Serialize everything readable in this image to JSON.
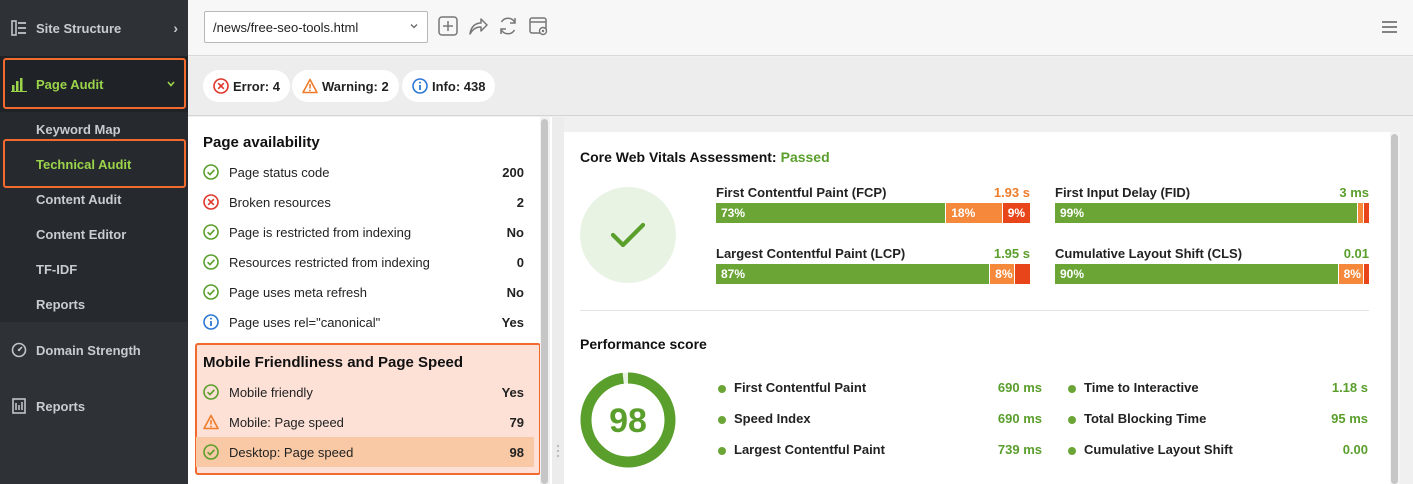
{
  "sidebar": {
    "site_structure": "Site Structure",
    "page_audit": "Page Audit",
    "sub_items": [
      "Keyword Map",
      "Technical Audit",
      "Content Audit",
      "Content Editor",
      "TF-IDF",
      "Reports"
    ],
    "domain_strength": "Domain Strength",
    "reports": "Reports"
  },
  "toolbar": {
    "url_value": "/news/free-seo-tools.html"
  },
  "filters": {
    "error": "Error: 4",
    "warning": "Warning: 2",
    "info": "Info: 438"
  },
  "availability": {
    "title": "Page availability",
    "rows": [
      {
        "label": "Page status code",
        "value": "200",
        "status": "ok"
      },
      {
        "label": "Broken resources",
        "value": "2",
        "status": "error"
      },
      {
        "label": "Page is restricted from indexing",
        "value": "No",
        "status": "ok"
      },
      {
        "label": "Resources restricted from indexing",
        "value": "0",
        "status": "ok"
      },
      {
        "label": "Page uses meta refresh",
        "value": "No",
        "status": "ok"
      },
      {
        "label": "Page uses rel=\"canonical\"",
        "value": "Yes",
        "status": "info"
      }
    ]
  },
  "mobile": {
    "title": "Mobile Friendliness and Page Speed",
    "rows": [
      {
        "label": "Mobile friendly",
        "value": "Yes",
        "status": "ok"
      },
      {
        "label": "Mobile: Page speed",
        "value": "79",
        "status": "warning"
      },
      {
        "label": "Desktop: Page speed",
        "value": "98",
        "status": "ok"
      }
    ]
  },
  "cwv": {
    "title": "Core Web Vitals Assessment:",
    "status": "Passed",
    "metrics": [
      {
        "name": "First Contentful Paint (FCP)",
        "value": "1.93 s",
        "value_color": "#f07c2a",
        "good": 73,
        "needs": 18,
        "poor": 9,
        "good_label": "73%",
        "needs_label": "18%",
        "poor_label": "9%"
      },
      {
        "name": "First Input Delay (FID)",
        "value": "3 ms",
        "value_color": "#5a9e2c",
        "good": 99,
        "needs": 0.5,
        "poor": 0.5,
        "good_label": "99%",
        "needs_label": "",
        "poor_label": ""
      },
      {
        "name": "Largest Contentful Paint (LCP)",
        "value": "1.95 s",
        "value_color": "#5a9e2c",
        "good": 87,
        "needs": 8,
        "poor": 5,
        "good_label": "87%",
        "needs_label": "8%",
        "poor_label": ""
      },
      {
        "name": "Cumulative Layout Shift (CLS)",
        "value": "0.01",
        "value_color": "#5a9e2c",
        "good": 90,
        "needs": 8,
        "poor": 2,
        "good_label": "90%",
        "needs_label": "8%",
        "poor_label": ""
      }
    ]
  },
  "performance": {
    "title": "Performance score",
    "score": "98",
    "score_fraction": 0.98,
    "metrics": [
      {
        "label": "First Contentful Paint",
        "value": "690 ms"
      },
      {
        "label": "Time to Interactive",
        "value": "1.18 s"
      },
      {
        "label": "Speed Index",
        "value": "690 ms"
      },
      {
        "label": "Total Blocking Time",
        "value": "95 ms"
      },
      {
        "label": "Largest Contentful Paint",
        "value": "739 ms"
      },
      {
        "label": "Cumulative Layout Shift",
        "value": "0.00"
      }
    ]
  },
  "colors": {
    "accent_orange": "#f26a2e",
    "good_green": "#6aa536",
    "needs_orange": "#f5883a",
    "poor_red": "#e8461a"
  }
}
